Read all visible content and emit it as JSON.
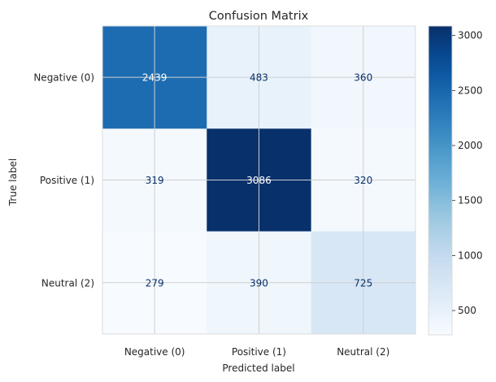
{
  "chart_data": {
    "type": "heatmap",
    "title": "Confusion Matrix",
    "xlabel": "Predicted label",
    "ylabel": "True label",
    "x_categories": [
      "Negative (0)",
      "Positive (1)",
      "Neutral (2)"
    ],
    "y_categories": [
      "Negative (0)",
      "Positive (1)",
      "Neutral (2)"
    ],
    "values": [
      [
        2439,
        483,
        360
      ],
      [
        319,
        3086,
        320
      ],
      [
        279,
        390,
        725
      ]
    ],
    "colormap": "Blues",
    "colorbar": {
      "range": [
        279,
        3086
      ],
      "ticks": [
        500,
        1000,
        1500,
        2000,
        2500,
        3000
      ]
    },
    "grid": true
  }
}
